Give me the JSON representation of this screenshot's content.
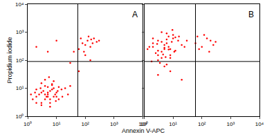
{
  "chart_data": {
    "type": "scatter",
    "log": true,
    "color": "#ff0000",
    "marker": "circle",
    "xlabel": "Annexin V-APC",
    "ylabel": "Propidium iodide",
    "xlim": [
      1,
      10000
    ],
    "ylim": [
      1,
      10000
    ],
    "xticks": [
      {
        "value": 1,
        "label": "10⁰"
      },
      {
        "value": 10,
        "label": "10¹"
      },
      {
        "value": 100,
        "label": "10²"
      },
      {
        "value": 1000,
        "label": "10³"
      },
      {
        "value": 10000,
        "label": "10⁴"
      }
    ],
    "yticks": [
      {
        "value": 1,
        "label": "10⁰"
      },
      {
        "value": 10,
        "label": "10¹"
      },
      {
        "value": 100,
        "label": "10²"
      },
      {
        "value": 1000,
        "label": "10³"
      },
      {
        "value": 10000,
        "label": "10⁴"
      }
    ],
    "panels": [
      {
        "label": "A",
        "quadrant_x": 55,
        "quadrant_y": 90,
        "x": [
          2,
          3,
          4,
          5,
          6,
          8,
          10,
          3,
          5,
          7,
          2.5,
          4,
          6,
          9,
          12,
          1.5,
          3.5,
          5,
          8,
          15,
          2,
          4,
          7,
          11,
          20,
          3,
          6,
          10,
          2,
          5,
          4,
          8,
          3,
          6,
          12,
          1.8,
          2.8,
          4.5,
          7,
          9.5,
          25,
          30,
          1.3,
          16,
          5.5,
          80,
          120,
          150,
          200,
          100,
          250,
          60,
          130,
          180,
          90,
          300,
          70,
          160,
          30,
          60,
          100,
          40,
          150,
          2,
          5,
          10
        ],
        "y": [
          5,
          7,
          4,
          6,
          8,
          10,
          7,
          3,
          5,
          9,
          6,
          12,
          4,
          6,
          11,
          4,
          8,
          7,
          5,
          9,
          3,
          6,
          14,
          8,
          10,
          15,
          3,
          5,
          9,
          11,
          20,
          18,
          2.5,
          2.2,
          4,
          7,
          10,
          5,
          13,
          3.5,
          6,
          12,
          6,
          5,
          25,
          400,
          500,
          300,
          600,
          350,
          450,
          250,
          700,
          400,
          200,
          500,
          600,
          550,
          80,
          40,
          150,
          200,
          100,
          300,
          200,
          500
        ]
      },
      {
        "label": "B",
        "quadrant_x": 60,
        "quadrant_y": 90,
        "x": [
          2,
          3,
          4,
          5,
          6,
          8,
          10,
          3,
          5,
          7,
          2.5,
          4,
          6,
          9,
          12,
          1.5,
          3.5,
          5,
          8,
          15,
          2,
          4,
          7,
          11,
          20,
          3,
          6,
          10,
          2,
          5,
          4,
          8,
          3,
          6,
          12,
          1.8,
          2.8,
          4.5,
          7,
          9.5,
          25,
          30,
          1.3,
          16,
          5.5,
          60,
          100,
          150,
          200,
          80,
          300,
          120,
          250,
          70,
          180,
          3,
          8,
          20
        ],
        "y": [
          300,
          500,
          200,
          250,
          400,
          150,
          600,
          100,
          350,
          700,
          180,
          120,
          900,
          450,
          220,
          300,
          80,
          60,
          250,
          500,
          400,
          1000,
          300,
          200,
          350,
          150,
          70,
          800,
          600,
          280,
          450,
          120,
          220,
          550,
          650,
          90,
          380,
          160,
          240,
          1200,
          300,
          500,
          250,
          700,
          130,
          400,
          300,
          600,
          500,
          250,
          450,
          800,
          350,
          700,
          200,
          30,
          40,
          20
        ]
      }
    ]
  }
}
